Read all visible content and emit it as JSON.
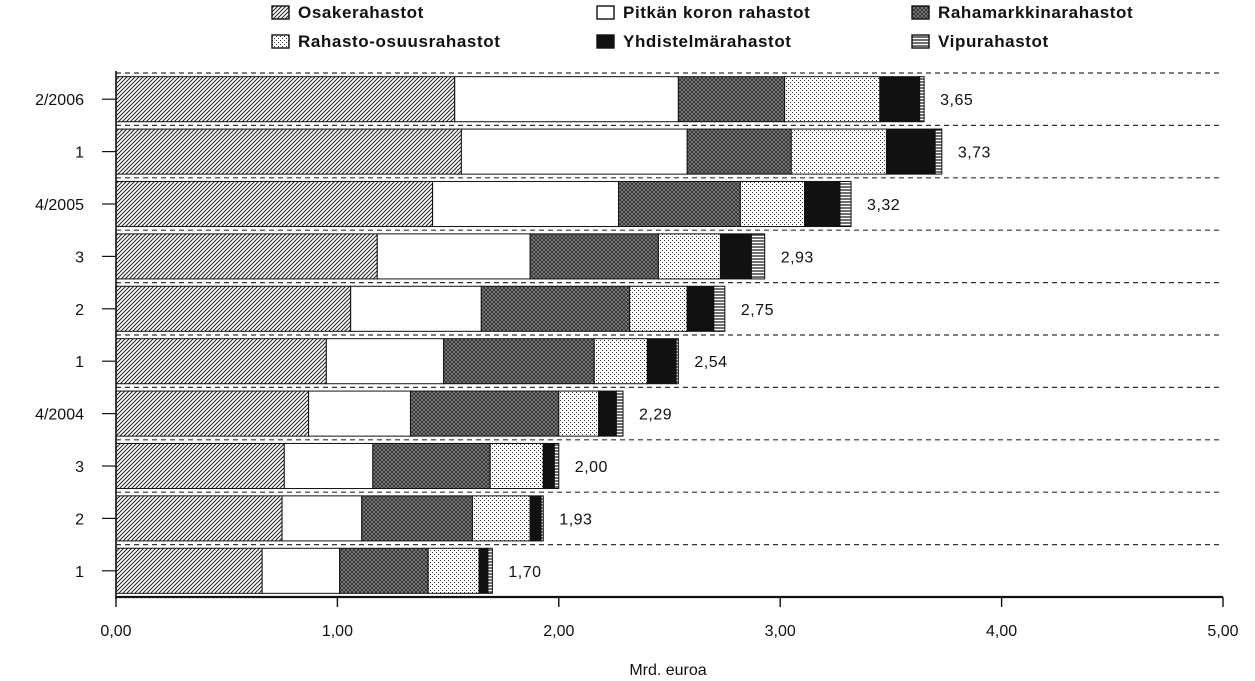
{
  "chart_data": {
    "type": "bar",
    "orientation": "horizontal",
    "stacked": true,
    "xlabel": "Mrd. euroa",
    "ylabel": "",
    "title": "",
    "xlim": [
      0,
      5
    ],
    "x_ticks": [
      "0,00",
      "1,00",
      "2,00",
      "3,00",
      "4,00",
      "5,00"
    ],
    "grid": "dashed horizontal between bars",
    "legend_position": "top",
    "categories": [
      "2/2006",
      "1",
      "4/2005",
      "3",
      "2",
      "1",
      "4/2004",
      "3",
      "2",
      "1"
    ],
    "series": [
      {
        "name": "Osakerahastot",
        "pattern": "diagonal-hatch",
        "values": [
          1.53,
          1.56,
          1.43,
          1.18,
          1.06,
          0.95,
          0.87,
          0.76,
          0.75,
          0.66
        ]
      },
      {
        "name": "Pitkän koron rahastot",
        "pattern": "white",
        "values": [
          1.01,
          1.02,
          0.84,
          0.69,
          0.59,
          0.53,
          0.46,
          0.4,
          0.36,
          0.35
        ]
      },
      {
        "name": "Rahamarkkinarahastot",
        "pattern": "dark-crosshatch",
        "values": [
          0.48,
          0.47,
          0.55,
          0.58,
          0.67,
          0.68,
          0.67,
          0.53,
          0.5,
          0.4
        ]
      },
      {
        "name": "Rahasto-osuusrahastot",
        "pattern": "dots",
        "values": [
          0.43,
          0.43,
          0.29,
          0.28,
          0.26,
          0.24,
          0.18,
          0.24,
          0.26,
          0.23
        ]
      },
      {
        "name": "Yhdistelmärahastot",
        "pattern": "black",
        "values": [
          0.18,
          0.22,
          0.16,
          0.14,
          0.12,
          0.13,
          0.08,
          0.05,
          0.05,
          0.04
        ]
      },
      {
        "name": "Vipurahastot",
        "pattern": "horizontal-lines",
        "values": [
          0.02,
          0.03,
          0.05,
          0.06,
          0.05,
          0.01,
          0.03,
          0.02,
          0.01,
          0.02
        ]
      }
    ],
    "totals": [
      "3,65",
      "3,73",
      "3,32",
      "2,93",
      "2,75",
      "2,54",
      "2,29",
      "2,00",
      "1,93",
      "1,70"
    ],
    "colors": {
      "ink": "#111111",
      "background": "#ffffff"
    }
  }
}
